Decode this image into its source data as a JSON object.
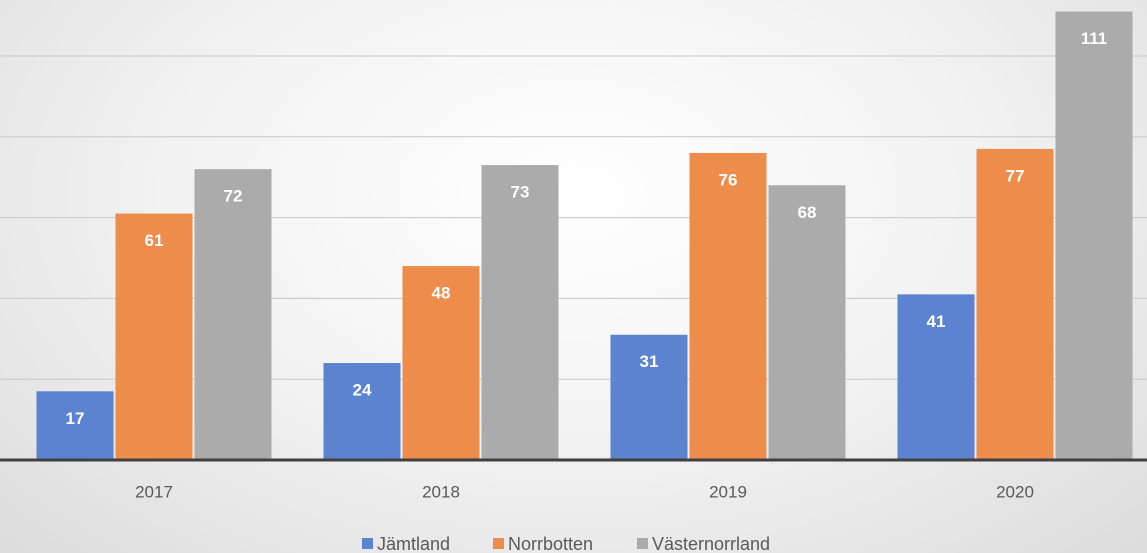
{
  "chart_data": {
    "type": "bar",
    "categories": [
      "2017",
      "2018",
      "2019",
      "2020"
    ],
    "series": [
      {
        "name": "Jämtland",
        "color": "#5b83cf",
        "values": [
          17,
          24,
          31,
          41
        ]
      },
      {
        "name": "Norrbotten",
        "color": "#ee8c4b",
        "values": [
          61,
          48,
          76,
          77
        ]
      },
      {
        "name": "Västernorrland",
        "color": "#ababab",
        "values": [
          72,
          73,
          68,
          111
        ]
      }
    ],
    "ylim": [
      0,
      120
    ],
    "yticks": [
      0,
      20,
      40,
      60,
      80,
      100
    ],
    "grid": true,
    "legend": "bottom"
  }
}
